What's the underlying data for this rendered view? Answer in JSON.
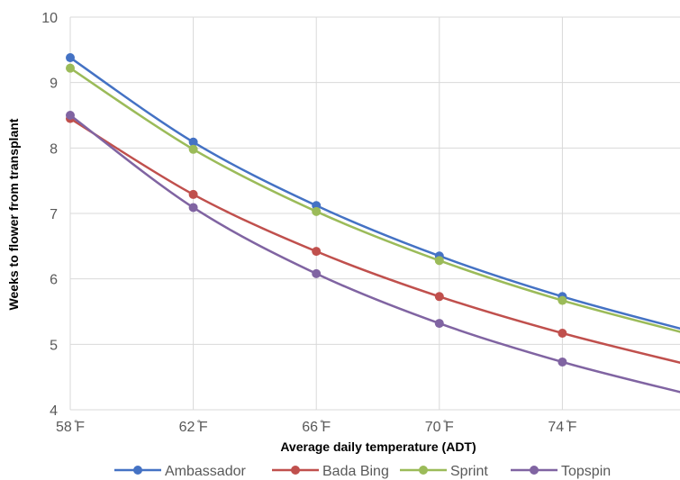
{
  "chart_data": {
    "type": "line",
    "title": "",
    "xlabel": "Average daily temperature (ADT)",
    "ylabel": "Weeks to flower from transplant",
    "x": [
      58,
      62,
      66,
      70,
      74,
      78
    ],
    "x_tick_labels": [
      "58 ̊F",
      "62 ̊F",
      "66 ̊F",
      "70 ̊F",
      "74 ̊F"
    ],
    "xlim": [
      58,
      78
    ],
    "ylim": [
      4,
      10
    ],
    "y_ticks": [
      4,
      5,
      6,
      7,
      8,
      9,
      10
    ],
    "grid": true,
    "legend_position": "bottom",
    "series": [
      {
        "name": "Ambassador",
        "color": "#4472C4",
        "values": [
          9.38,
          8.09,
          7.12,
          6.35,
          5.73,
          5.22
        ]
      },
      {
        "name": "Bada Bing",
        "color": "#C0504D",
        "values": [
          8.45,
          7.29,
          6.42,
          5.73,
          5.17,
          4.7
        ]
      },
      {
        "name": "Sprint",
        "color": "#9BBB59",
        "values": [
          9.22,
          7.98,
          7.03,
          6.28,
          5.67,
          5.17
        ]
      },
      {
        "name": "Topspin",
        "color": "#8064A2",
        "values": [
          8.5,
          7.09,
          6.08,
          5.32,
          4.73,
          4.25
        ]
      }
    ]
  }
}
